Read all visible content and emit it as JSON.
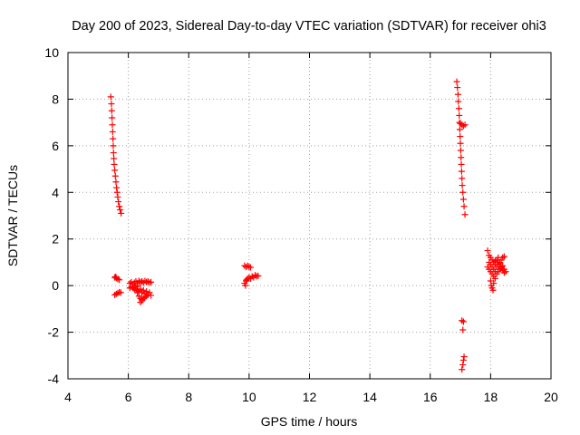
{
  "chart_data": {
    "type": "scatter",
    "title": "Day 200 of 2023, Sidereal Day-to-day VTEC variation (SDTVAR) for receiver ohi3",
    "xlabel": "GPS time / hours",
    "ylabel": "SDTVAR / TECUs",
    "xlim": [
      4,
      20
    ],
    "ylim": [
      -4,
      10
    ],
    "x_ticks": [
      4,
      6,
      8,
      10,
      12,
      14,
      16,
      18,
      20
    ],
    "y_ticks": [
      -4,
      -2,
      0,
      2,
      4,
      6,
      8,
      10
    ],
    "grid": true,
    "marker": "plus",
    "series": [
      {
        "name": "SDTVAR",
        "color": "#ff0000",
        "points": [
          [
            5.42,
            8.1
          ],
          [
            5.44,
            7.8
          ],
          [
            5.45,
            7.5
          ],
          [
            5.46,
            7.2
          ],
          [
            5.47,
            6.9
          ],
          [
            5.48,
            6.6
          ],
          [
            5.49,
            6.3
          ],
          [
            5.5,
            6.0
          ],
          [
            5.51,
            5.7
          ],
          [
            5.52,
            5.45
          ],
          [
            5.53,
            5.2
          ],
          [
            5.55,
            4.95
          ],
          [
            5.57,
            4.7
          ],
          [
            5.59,
            4.45
          ],
          [
            5.61,
            4.2
          ],
          [
            5.63,
            4.0
          ],
          [
            5.65,
            3.8
          ],
          [
            5.67,
            3.6
          ],
          [
            5.7,
            3.4
          ],
          [
            5.73,
            3.25
          ],
          [
            5.76,
            3.1
          ],
          [
            5.55,
            0.35
          ],
          [
            5.6,
            0.32
          ],
          [
            5.65,
            0.28
          ],
          [
            5.7,
            0.25
          ],
          [
            5.58,
            0.38
          ],
          [
            5.55,
            -0.4
          ],
          [
            5.6,
            -0.36
          ],
          [
            5.65,
            -0.32
          ],
          [
            5.7,
            -0.28
          ],
          [
            5.75,
            -0.3
          ],
          [
            6.05,
            0.1
          ],
          [
            6.1,
            0.15
          ],
          [
            6.15,
            0.05
          ],
          [
            6.2,
            0.12
          ],
          [
            6.25,
            0.18
          ],
          [
            6.3,
            0.1
          ],
          [
            6.35,
            0.2
          ],
          [
            6.4,
            0.15
          ],
          [
            6.45,
            0.18
          ],
          [
            6.5,
            0.12
          ],
          [
            6.55,
            0.2
          ],
          [
            6.6,
            0.15
          ],
          [
            6.65,
            0.18
          ],
          [
            6.7,
            0.12
          ],
          [
            6.75,
            0.15
          ],
          [
            6.1,
            -0.05
          ],
          [
            6.15,
            -0.1
          ],
          [
            6.2,
            -0.15
          ],
          [
            6.25,
            -0.05
          ],
          [
            6.3,
            -0.2
          ],
          [
            6.35,
            -0.25
          ],
          [
            6.4,
            -0.15
          ],
          [
            6.45,
            -0.3
          ],
          [
            6.5,
            -0.2
          ],
          [
            6.55,
            -0.35
          ],
          [
            6.6,
            -0.25
          ],
          [
            6.65,
            -0.4
          ],
          [
            6.7,
            -0.3
          ],
          [
            6.75,
            -0.42
          ],
          [
            6.2,
            -0.1
          ],
          [
            6.25,
            -0.2
          ],
          [
            6.3,
            -0.3
          ],
          [
            6.35,
            -0.45
          ],
          [
            6.4,
            -0.55
          ],
          [
            6.45,
            -0.65
          ],
          [
            6.5,
            -0.55
          ],
          [
            6.4,
            -0.72
          ],
          [
            6.45,
            -0.6
          ],
          [
            6.55,
            -0.5
          ],
          [
            6.6,
            -0.45
          ],
          [
            6.3,
            0.0
          ],
          [
            6.05,
            -0.1
          ],
          [
            9.85,
            0.85
          ],
          [
            9.9,
            0.8
          ],
          [
            9.95,
            0.85
          ],
          [
            10.0,
            0.8
          ],
          [
            10.05,
            0.78
          ],
          [
            9.85,
            0.1
          ],
          [
            9.9,
            0.2
          ],
          [
            9.95,
            0.3
          ],
          [
            10.0,
            0.35
          ],
          [
            10.05,
            0.3
          ],
          [
            10.1,
            0.4
          ],
          [
            10.15,
            0.35
          ],
          [
            10.2,
            0.45
          ],
          [
            10.25,
            0.4
          ],
          [
            10.3,
            0.42
          ],
          [
            9.88,
            0.0
          ],
          [
            9.92,
            0.25
          ],
          [
            16.88,
            8.75
          ],
          [
            16.9,
            8.5
          ],
          [
            16.92,
            8.2
          ],
          [
            16.93,
            7.9
          ],
          [
            16.95,
            7.6
          ],
          [
            16.96,
            7.3
          ],
          [
            16.97,
            7.0
          ],
          [
            16.98,
            6.7
          ],
          [
            16.99,
            6.4
          ],
          [
            17.0,
            6.1
          ],
          [
            17.01,
            5.8
          ],
          [
            17.02,
            5.5
          ],
          [
            17.03,
            5.2
          ],
          [
            17.04,
            4.9
          ],
          [
            17.05,
            4.6
          ],
          [
            17.06,
            4.3
          ],
          [
            17.08,
            4.0
          ],
          [
            17.1,
            3.7
          ],
          [
            17.12,
            3.4
          ],
          [
            17.15,
            3.05
          ],
          [
            17.0,
            6.95
          ],
          [
            17.05,
            6.9
          ],
          [
            17.1,
            6.85
          ],
          [
            17.15,
            6.9
          ],
          [
            17.05,
            -1.5
          ],
          [
            17.1,
            -1.55
          ],
          [
            17.08,
            -1.9
          ],
          [
            17.05,
            -3.6
          ],
          [
            17.08,
            -3.4
          ],
          [
            17.1,
            -3.2
          ],
          [
            17.12,
            -3.05
          ],
          [
            17.9,
            1.5
          ],
          [
            17.95,
            1.3
          ],
          [
            18.0,
            1.2
          ],
          [
            18.05,
            1.1
          ],
          [
            18.1,
            1.0
          ],
          [
            18.15,
            0.9
          ],
          [
            18.2,
            0.8
          ],
          [
            18.25,
            0.9
          ],
          [
            18.3,
            1.0
          ],
          [
            18.35,
            1.1
          ],
          [
            18.4,
            1.2
          ],
          [
            18.45,
            1.25
          ],
          [
            17.9,
            0.8
          ],
          [
            17.95,
            0.7
          ],
          [
            18.0,
            0.6
          ],
          [
            18.05,
            0.5
          ],
          [
            18.1,
            0.4
          ],
          [
            18.15,
            0.3
          ],
          [
            18.2,
            0.5
          ],
          [
            18.25,
            0.6
          ],
          [
            18.3,
            0.7
          ],
          [
            18.35,
            0.8
          ],
          [
            18.4,
            0.85
          ],
          [
            18.45,
            0.7
          ],
          [
            18.5,
            0.6
          ],
          [
            18.0,
            0.2
          ],
          [
            18.02,
            0.0
          ],
          [
            18.05,
            -0.1
          ],
          [
            18.08,
            -0.2
          ],
          [
            18.1,
            0.1
          ],
          [
            18.15,
            0.6
          ],
          [
            18.2,
            1.1
          ],
          [
            18.25,
            1.2
          ],
          [
            18.3,
            0.95
          ],
          [
            18.35,
            0.75
          ],
          [
            18.4,
            0.65
          ],
          [
            18.45,
            0.55
          ],
          [
            17.95,
            1.0
          ],
          [
            18.0,
            0.9
          ],
          [
            18.05,
            0.8
          ],
          [
            18.1,
            0.7
          ],
          [
            18.15,
            1.05
          ]
        ]
      }
    ]
  }
}
